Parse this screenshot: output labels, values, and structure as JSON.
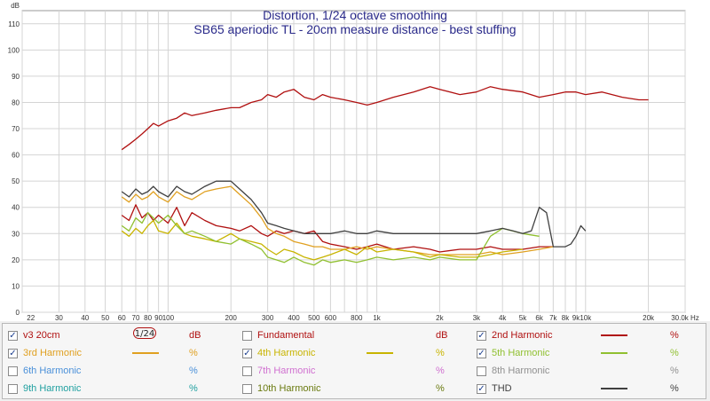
{
  "chart_data": {
    "type": "line",
    "title": "Distortion, 1/24 octave smoothing",
    "subtitle": "SB65 aperiodic TL - 20cm measure distance - best stuffing",
    "ylabel": "dB",
    "xunit": "Hz",
    "xscale": "log",
    "xlim": [
      20,
      30000
    ],
    "ylim": [
      0,
      115
    ],
    "y_ticks": [
      0,
      10,
      20,
      30,
      40,
      50,
      60,
      70,
      80,
      90,
      100,
      110
    ],
    "x_ticks": [
      {
        "v": 22,
        "label": "22"
      },
      {
        "v": 30,
        "label": "30"
      },
      {
        "v": 40,
        "label": "40"
      },
      {
        "v": 50,
        "label": "50"
      },
      {
        "v": 60,
        "label": "60"
      },
      {
        "v": 70,
        "label": "70"
      },
      {
        "v": 80,
        "label": "80"
      },
      {
        "v": 90,
        "label": "90"
      },
      {
        "v": 100,
        "label": "100"
      },
      {
        "v": 200,
        "label": "200"
      },
      {
        "v": 300,
        "label": "300"
      },
      {
        "v": 400,
        "label": "400"
      },
      {
        "v": 500,
        "label": "500"
      },
      {
        "v": 600,
        "label": "600"
      },
      {
        "v": 800,
        "label": "800"
      },
      {
        "v": 1000,
        "label": "1k"
      },
      {
        "v": 2000,
        "label": "2k"
      },
      {
        "v": 3000,
        "label": "3k"
      },
      {
        "v": 4000,
        "label": "4k"
      },
      {
        "v": 5000,
        "label": "5k"
      },
      {
        "v": 6000,
        "label": "6k"
      },
      {
        "v": 7000,
        "label": "7k"
      },
      {
        "v": 8000,
        "label": "8k"
      },
      {
        "v": 9000,
        "label": "9k"
      },
      {
        "v": 10000,
        "label": "10k"
      },
      {
        "v": 20000,
        "label": "20k"
      },
      {
        "v": 30000,
        "label": "30.0k Hz"
      }
    ],
    "grid": true,
    "series": [
      {
        "name": "v3 20cm",
        "color": "#b01010",
        "x": [
          60,
          65,
          70,
          75,
          80,
          85,
          90,
          100,
          110,
          120,
          130,
          150,
          170,
          200,
          220,
          250,
          280,
          300,
          330,
          360,
          400,
          450,
          500,
          550,
          600,
          700,
          800,
          900,
          1000,
          1200,
          1500,
          1800,
          2000,
          2500,
          3000,
          3500,
          4000,
          5000,
          6000,
          7000,
          8000,
          9000,
          10000,
          12000,
          15000,
          18000,
          20000
        ],
        "y": [
          62,
          64,
          66,
          68,
          70,
          72,
          71,
          73,
          74,
          76,
          75,
          76,
          77,
          78,
          78,
          80,
          81,
          83,
          82,
          84,
          85,
          82,
          81,
          83,
          82,
          81,
          80,
          79,
          80,
          82,
          84,
          86,
          85,
          83,
          84,
          86,
          85,
          84,
          82,
          83,
          84,
          84,
          83,
          84,
          82,
          81,
          81
        ]
      },
      {
        "name": "2nd Harmonic",
        "color": "#b01010",
        "x": [
          60,
          65,
          70,
          75,
          80,
          85,
          90,
          100,
          110,
          120,
          130,
          150,
          170,
          200,
          220,
          250,
          280,
          300,
          330,
          360,
          400,
          450,
          500,
          550,
          600,
          700,
          800,
          900,
          1000,
          1200,
          1500,
          1800,
          2000,
          2500,
          3000,
          3500,
          4000,
          5000,
          6000,
          7000
        ],
        "y": [
          37,
          35,
          41,
          36,
          38,
          35,
          37,
          34,
          40,
          33,
          38,
          35,
          33,
          32,
          31,
          33,
          30,
          29,
          31,
          30,
          31,
          30,
          31,
          27,
          26,
          25,
          24,
          25,
          26,
          24,
          25,
          24,
          23,
          24,
          24,
          25,
          24,
          24,
          25,
          25
        ]
      },
      {
        "name": "3rd Harmonic",
        "color": "#e0a020",
        "x": [
          60,
          65,
          70,
          75,
          80,
          85,
          90,
          100,
          110,
          120,
          130,
          150,
          170,
          200,
          220,
          250,
          280,
          300,
          330,
          360,
          400,
          450,
          500,
          550,
          600,
          700,
          800,
          900,
          1000,
          1200,
          1500,
          1800,
          2000,
          2500,
          3000,
          3500,
          4000,
          5000,
          6000,
          7000
        ],
        "y": [
          44,
          42,
          45,
          43,
          44,
          46,
          44,
          42,
          46,
          44,
          43,
          46,
          47,
          48,
          45,
          41,
          36,
          32,
          30,
          29,
          27,
          26,
          25,
          25,
          24,
          24,
          25,
          24,
          25,
          24,
          23,
          22,
          22,
          22,
          22,
          23,
          22,
          23,
          24,
          25
        ]
      },
      {
        "name": "4th Harmonic",
        "color": "#c8b400",
        "x": [
          60,
          65,
          70,
          75,
          80,
          85,
          90,
          100,
          110,
          120,
          130,
          150,
          170,
          200,
          220,
          250,
          280,
          300,
          330,
          360,
          400,
          450,
          500,
          550,
          600,
          700,
          800,
          900,
          1000,
          1200,
          1500,
          1800,
          2000,
          2500,
          3000,
          3500,
          4000,
          5000
        ],
        "y": [
          31,
          29,
          32,
          30,
          33,
          35,
          31,
          30,
          34,
          30,
          29,
          28,
          27,
          30,
          28,
          27,
          26,
          24,
          22,
          24,
          23,
          21,
          20,
          21,
          22,
          24,
          22,
          25,
          23,
          24,
          23,
          21,
          22,
          21,
          21,
          22,
          23,
          24
        ]
      },
      {
        "name": "5th Harmonic",
        "color": "#90c030",
        "x": [
          60,
          65,
          70,
          75,
          80,
          85,
          90,
          100,
          110,
          120,
          130,
          150,
          170,
          200,
          220,
          250,
          280,
          300,
          330,
          360,
          400,
          450,
          500,
          550,
          600,
          700,
          800,
          900,
          1000,
          1200,
          1500,
          1800,
          2000,
          2500,
          3000,
          3500,
          4000,
          5000,
          6000
        ],
        "y": [
          33,
          31,
          36,
          34,
          38,
          36,
          34,
          37,
          33,
          30,
          31,
          29,
          27,
          26,
          28,
          26,
          24,
          21,
          20,
          19,
          21,
          19,
          18,
          20,
          19,
          20,
          19,
          20,
          21,
          20,
          21,
          20,
          21,
          20,
          20,
          29,
          32,
          30,
          29
        ]
      },
      {
        "name": "THD",
        "color": "#404040",
        "x": [
          60,
          65,
          70,
          75,
          80,
          85,
          90,
          100,
          110,
          120,
          130,
          150,
          170,
          200,
          220,
          250,
          280,
          300,
          330,
          360,
          400,
          450,
          500,
          550,
          600,
          700,
          800,
          900,
          1000,
          1200,
          1500,
          1800,
          2000,
          2500,
          3000,
          3500,
          4000,
          4500,
          5000,
          5500,
          6000,
          6500,
          7000,
          7500,
          8000,
          8500,
          9000,
          9500,
          10000
        ],
        "y": [
          46,
          44,
          47,
          45,
          46,
          48,
          46,
          44,
          48,
          46,
          45,
          48,
          50,
          50,
          47,
          43,
          38,
          34,
          33,
          32,
          31,
          30,
          30,
          30,
          30,
          31,
          30,
          30,
          31,
          30,
          30,
          30,
          30,
          30,
          30,
          31,
          32,
          31,
          30,
          31,
          40,
          38,
          25,
          25,
          25,
          26,
          29,
          33,
          31
        ]
      }
    ]
  },
  "legend": {
    "smoothing_label": "1/24",
    "rows": [
      [
        {
          "label": "v3 20cm",
          "checked": true,
          "color": "#b01010",
          "unit": "dB",
          "unit_color": "#b01010"
        },
        {
          "label": "Fundamental",
          "checked": false,
          "color": "#b01010",
          "unit": "dB",
          "unit_color": "#b01010"
        },
        {
          "label": "2nd Harmonic",
          "checked": true,
          "color": "#b01010",
          "swatch": "#b01010",
          "unit": "%",
          "unit_color": "#b01010"
        }
      ],
      [
        {
          "label": "3rd Harmonic",
          "checked": true,
          "color": "#e0a020",
          "swatch": "#e0a020",
          "unit": "%",
          "unit_color": "#e0a020"
        },
        {
          "label": "4th Harmonic",
          "checked": true,
          "color": "#c8b400",
          "swatch": "#c8b400",
          "unit": "%",
          "unit_color": "#c8b400"
        },
        {
          "label": "5th Harmonic",
          "checked": true,
          "color": "#90c030",
          "swatch": "#90c030",
          "unit": "%",
          "unit_color": "#90c030"
        }
      ],
      [
        {
          "label": "6th Harmonic",
          "checked": false,
          "color": "#4a90d9",
          "unit": "%",
          "unit_color": "#4a90d9"
        },
        {
          "label": "7th Harmonic",
          "checked": false,
          "color": "#d070d0",
          "unit": "%",
          "unit_color": "#d070d0"
        },
        {
          "label": "8th Harmonic",
          "checked": false,
          "color": "#909090",
          "unit": "%",
          "unit_color": "#909090"
        }
      ],
      [
        {
          "label": "9th Harmonic",
          "checked": false,
          "color": "#20a0a0",
          "unit": "%",
          "unit_color": "#20a0a0"
        },
        {
          "label": "10th Harmonic",
          "checked": false,
          "color": "#6a7a10",
          "unit": "%",
          "unit_color": "#6a7a10"
        },
        {
          "label": "THD",
          "checked": true,
          "color": "#404040",
          "swatch": "#404040",
          "unit": "%",
          "unit_color": "#404040"
        }
      ]
    ]
  }
}
